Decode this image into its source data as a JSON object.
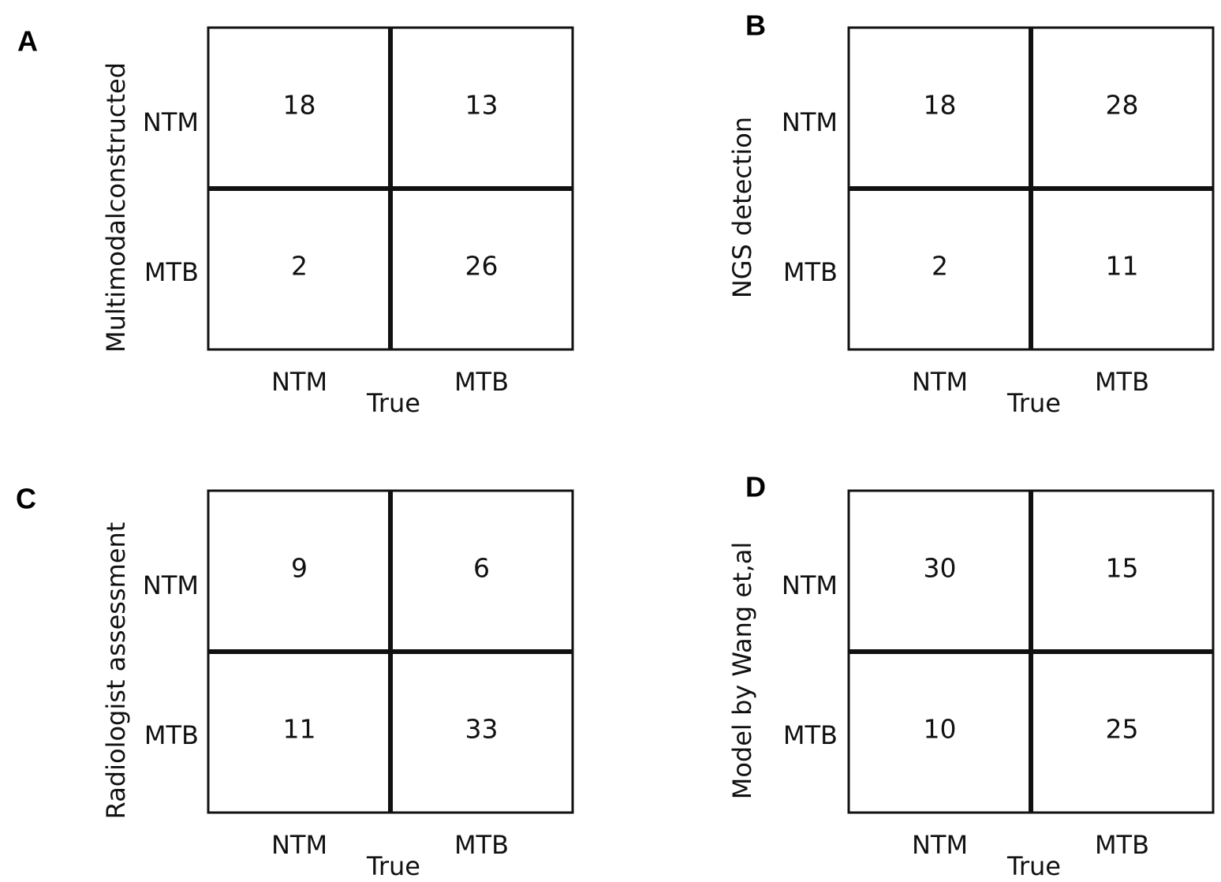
{
  "chart_data": [
    {
      "type": "heatmap",
      "panel": "A",
      "ylabel": "Multimodalconstructed",
      "xlabel": "True",
      "x_categories": [
        "NTM",
        "MTB"
      ],
      "y_categories": [
        "NTM",
        "MTB"
      ],
      "matrix": [
        [
          18,
          13
        ],
        [
          2,
          26
        ]
      ],
      "colors": {
        "line": "#111111",
        "background": "#ffffff"
      }
    },
    {
      "type": "heatmap",
      "panel": "B",
      "ylabel": "NGS detection",
      "xlabel": "True",
      "x_categories": [
        "NTM",
        "MTB"
      ],
      "y_categories": [
        "NTM",
        "MTB"
      ],
      "matrix": [
        [
          18,
          28
        ],
        [
          2,
          11
        ]
      ],
      "colors": {
        "line": "#111111",
        "background": "#ffffff"
      }
    },
    {
      "type": "heatmap",
      "panel": "C",
      "ylabel": "Radiologist assessment",
      "xlabel": "True",
      "x_categories": [
        "NTM",
        "MTB"
      ],
      "y_categories": [
        "NTM",
        "MTB"
      ],
      "matrix": [
        [
          9,
          6
        ],
        [
          11,
          33
        ]
      ],
      "colors": {
        "line": "#111111",
        "background": "#ffffff"
      }
    },
    {
      "type": "heatmap",
      "panel": "D",
      "ylabel": "Model by Wang et,al",
      "xlabel": "True",
      "x_categories": [
        "NTM",
        "MTB"
      ],
      "y_categories": [
        "NTM",
        "MTB"
      ],
      "matrix": [
        [
          30,
          15
        ],
        [
          10,
          25
        ]
      ],
      "colors": {
        "line": "#111111",
        "background": "#ffffff"
      }
    }
  ]
}
